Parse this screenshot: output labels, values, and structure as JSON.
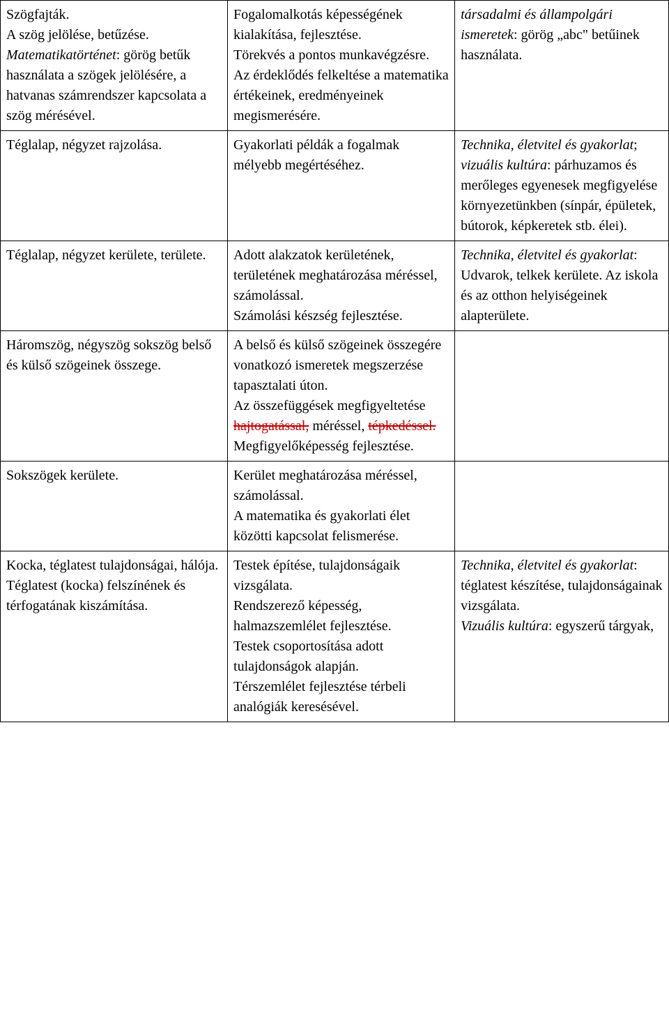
{
  "table": {
    "rows": [
      {
        "c1_lines": [
          {
            "text": "Szögfajták."
          },
          {
            "text": "A szög jelölése, betűzése."
          },
          {
            "spans": [
              {
                "text": "Matematikatörténet",
                "italic": true
              },
              {
                "text": ": görög betűk használata a szögek jelölésére, a hatvanas számrendszer kapcsolata a szög mérésével."
              }
            ]
          }
        ],
        "c2_lines": [
          {
            "text": "Fogalomalkotás képességének kialakítása, fejlesztése."
          },
          {
            "text": "Törekvés a pontos munkavégzésre."
          },
          {
            "text": "Az érdeklődés felkeltése a matematika értékeinek, eredményeinek megismerésére."
          }
        ],
        "c3_lines": [
          {
            "spans": [
              {
                "text": "társadalmi és állampolgári ismeretek",
                "italic": true
              },
              {
                "text": ": görög „abc\" betűinek használata."
              }
            ]
          }
        ]
      },
      {
        "c1_lines": [
          {
            "text": "Téglalap, négyzet rajzolása."
          }
        ],
        "c2_lines": [
          {
            "text": "Gyakorlati példák a fogalmak mélyebb megértéséhez."
          }
        ],
        "c3_lines": [
          {
            "spans": [
              {
                "text": "Technika, életvitel és gyakorlat",
                "italic": true
              },
              {
                "text": "; "
              },
              {
                "text": "vizuális kultúra",
                "italic": true
              },
              {
                "text": ": párhuzamos és merőleges egyenesek megfigyelése környezetünkben (sínpár, épületek, bútorok, képkeretek stb. élei)."
              }
            ]
          }
        ]
      },
      {
        "c1_lines": [
          {
            "text": "Téglalap, négyzet kerülete, területe."
          }
        ],
        "c2_lines": [
          {
            "text": "Adott alakzatok kerületének, területének meghatározása méréssel, számolással."
          },
          {
            "text": "Számolási készség fejlesztése."
          }
        ],
        "c3_lines": [
          {
            "spans": [
              {
                "text": "Technika, életvitel és gyakorlat",
                "italic": true
              },
              {
                "text": ": Udvarok, telkek kerülete. Az iskola és az otthon helyiségeinek alapterülete."
              }
            ]
          }
        ]
      },
      {
        "c1_lines": [
          {
            "text": "Háromszög, négyszög sokszög belső és külső szögeinek összege."
          }
        ],
        "c2_lines": [
          {
            "text": "A belső és külső szögeinek összegére vonatkozó ismeretek megszerzése tapasztalati úton."
          },
          {
            "spans": [
              {
                "text": "Az összefüggések megfigyeltetése "
              },
              {
                "text": "hajtogatással,",
                "strike": true
              },
              {
                "text": " méréssel, "
              },
              {
                "text": "tépkedéssel.",
                "strike": true
              }
            ]
          },
          {
            "text": "Megfigyelőképesség fejlesztése."
          }
        ],
        "c3_lines": []
      },
      {
        "c1_lines": [
          {
            "text": "Sokszögek kerülete."
          }
        ],
        "c2_lines": [
          {
            "text": "Kerület meghatározása méréssel, számolással."
          },
          {
            "text": "A matematika és gyakorlati élet közötti kapcsolat felismerése."
          }
        ],
        "c3_lines": []
      },
      {
        "c1_lines": [
          {
            "text": "Kocka, téglatest tulajdonságai, hálója."
          },
          {
            "text": "Téglatest (kocka) felszínének és térfogatának kiszámítása."
          }
        ],
        "c2_lines": [
          {
            "text": "Testek építése, tulajdonságaik vizsgálata."
          },
          {
            "text": "Rendszerező képesség, halmazszemlélet fejlesztése."
          },
          {
            "text": "Testek csoportosítása adott tulajdonságok alapján."
          },
          {
            "text": "Térszemlélet fejlesztése térbeli analógiák keresésével."
          }
        ],
        "c3_lines": [
          {
            "spans": [
              {
                "text": "Technika, életvitel és gyakorlat",
                "italic": true
              },
              {
                "text": ": téglatest készítése, tulajdonságainak vizsgálata."
              }
            ]
          },
          {
            "text": " "
          },
          {
            "spans": [
              {
                "text": "Vizuális kultúra",
                "italic": true
              },
              {
                "text": ": egyszerű tárgyak,"
              }
            ]
          }
        ]
      }
    ]
  }
}
